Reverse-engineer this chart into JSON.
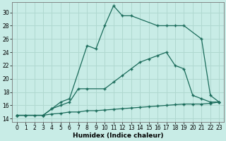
{
  "xlabel": "Humidex (Indice chaleur)",
  "xlim": [
    -0.5,
    23.5
  ],
  "ylim": [
    13.5,
    31.5
  ],
  "yticks": [
    14,
    16,
    18,
    20,
    22,
    24,
    26,
    28,
    30
  ],
  "xticks": [
    0,
    1,
    2,
    3,
    4,
    5,
    6,
    7,
    8,
    9,
    10,
    11,
    12,
    13,
    14,
    15,
    16,
    17,
    18,
    19,
    20,
    21,
    22,
    23
  ],
  "bg_color": "#c8ece6",
  "line_color": "#1a6b5a",
  "grid_color": "#b0d8d0",
  "line1_x": [
    0,
    1,
    3,
    4,
    5,
    6,
    8,
    9,
    10,
    11,
    12,
    13,
    16,
    17,
    18,
    19,
    21,
    22,
    23
  ],
  "line1_y": [
    14.5,
    14.5,
    14.5,
    15.5,
    16.5,
    17.0,
    25.0,
    24.5,
    28.0,
    31.0,
    29.5,
    29.5,
    28.0,
    28.0,
    28.0,
    28.0,
    26.0,
    17.5,
    16.5
  ],
  "line2_x": [
    0,
    3,
    4,
    5,
    6,
    7,
    8,
    10,
    11,
    12,
    13,
    14,
    15,
    16,
    17,
    18,
    19,
    20,
    21,
    22,
    23
  ],
  "line2_y": [
    14.5,
    14.5,
    15.5,
    16.0,
    16.5,
    18.5,
    18.5,
    18.5,
    19.5,
    20.5,
    21.5,
    22.5,
    23.0,
    23.5,
    24.0,
    22.0,
    21.5,
    17.5,
    17.0,
    16.5,
    16.5
  ],
  "line3_x": [
    0,
    1,
    2,
    3,
    4,
    5,
    6,
    7,
    8,
    9,
    10,
    11,
    12,
    13,
    14,
    15,
    16,
    17,
    18,
    19,
    20,
    21,
    22,
    23
  ],
  "line3_y": [
    14.5,
    14.5,
    14.5,
    14.5,
    14.7,
    14.8,
    15.0,
    15.0,
    15.2,
    15.2,
    15.3,
    15.4,
    15.5,
    15.6,
    15.7,
    15.8,
    15.9,
    16.0,
    16.1,
    16.2,
    16.2,
    16.2,
    16.3,
    16.5
  ]
}
